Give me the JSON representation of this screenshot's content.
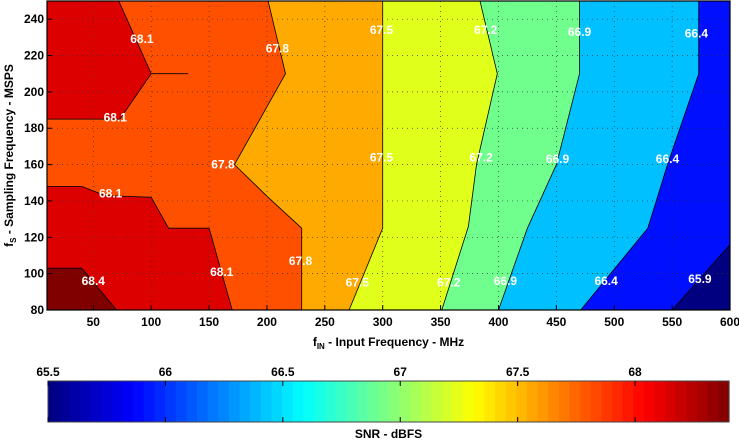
{
  "chart_data": {
    "type": "contour",
    "xlabel": {
      "main": "f",
      "sub": "IN",
      "rest": " - Input Frequency - MHz"
    },
    "ylabel": {
      "main": "f",
      "sub": "S",
      "rest": " - Sampling Frequency - MSPS"
    },
    "xlim": [
      10,
      600
    ],
    "ylim": [
      80,
      250
    ],
    "xticks": [
      50,
      100,
      150,
      200,
      250,
      300,
      350,
      400,
      450,
      500,
      550,
      600
    ],
    "yticks": [
      80,
      100,
      120,
      140,
      160,
      180,
      200,
      220,
      240
    ],
    "grid": true,
    "base_level": {
      "level": 67.8,
      "color": "#ff5000"
    },
    "bands_right_of_boundary": [
      {
        "level": 67.5,
        "color": "#ffaa00",
        "boundary": [
          [
            201,
            250
          ],
          [
            216,
            210
          ],
          [
            172,
            160
          ],
          [
            201,
            142
          ],
          [
            230,
            125
          ],
          [
            230,
            80
          ]
        ]
      },
      {
        "level": 67.2,
        "color": "#e0ff1a",
        "boundary": [
          [
            300,
            250
          ],
          [
            300,
            125
          ],
          [
            271,
            80
          ]
        ]
      },
      {
        "level": 66.9,
        "color": "#70ff8c",
        "boundary": [
          [
            384,
            250
          ],
          [
            399,
            210
          ],
          [
            381,
            160
          ],
          [
            374,
            126
          ],
          [
            351,
            80
          ]
        ]
      },
      {
        "level": 66.4,
        "color": "#00c0ff",
        "boundary": [
          [
            470,
            250
          ],
          [
            470,
            210
          ],
          [
            450,
            160
          ],
          [
            425,
            125
          ],
          [
            400,
            80
          ]
        ]
      },
      {
        "level": 65.9,
        "color": "#0010ff",
        "boundary": [
          [
            573,
            250
          ],
          [
            573,
            210
          ],
          [
            546,
            160
          ],
          [
            529,
            125
          ],
          [
            471,
            80
          ]
        ]
      },
      {
        "level": 65.6,
        "color": "#000080",
        "boundary": [
          [
            600,
            116
          ],
          [
            550,
            80
          ]
        ]
      }
    ],
    "islands": [
      {
        "level": 68.1,
        "color": "#dd0000",
        "polygon": [
          [
            10,
            250
          ],
          [
            72,
            250
          ],
          [
            100,
            210
          ],
          [
            73,
            185
          ],
          [
            10,
            185
          ]
        ]
      },
      {
        "level": 68.1,
        "color": "#dd0000",
        "polygon": [
          [
            10,
            148
          ],
          [
            40,
            148
          ],
          [
            60,
            143
          ],
          [
            100,
            142
          ],
          [
            115,
            125
          ],
          [
            150,
            125
          ],
          [
            170,
            80
          ],
          [
            10,
            80
          ]
        ]
      },
      {
        "level": 68.4,
        "color": "#800000",
        "polygon": [
          [
            10,
            103
          ],
          [
            40,
            103
          ],
          [
            70,
            80
          ],
          [
            10,
            80
          ]
        ]
      }
    ],
    "extra_lines": [
      [
        [
          100,
          210
        ],
        [
          132,
          210
        ]
      ]
    ],
    "contour_labels": [
      {
        "text": "68.1",
        "x": 92,
        "y": 229
      },
      {
        "text": "68.1",
        "x": 69,
        "y": 186
      },
      {
        "text": "68.1",
        "x": 65,
        "y": 144
      },
      {
        "text": "68.4",
        "x": 50,
        "y": 96
      },
      {
        "text": "68.1",
        "x": 161,
        "y": 101
      },
      {
        "text": "67.8",
        "x": 162,
        "y": 160
      },
      {
        "text": "67.8",
        "x": 209,
        "y": 224
      },
      {
        "text": "67.8",
        "x": 229,
        "y": 107
      },
      {
        "text": "67.5",
        "x": 299,
        "y": 234
      },
      {
        "text": "67.5",
        "x": 299,
        "y": 164
      },
      {
        "text": "67.5",
        "x": 278,
        "y": 95
      },
      {
        "text": "67.2",
        "x": 389,
        "y": 234
      },
      {
        "text": "67.2",
        "x": 385,
        "y": 164
      },
      {
        "text": "67.2",
        "x": 357,
        "y": 95
      },
      {
        "text": "66.9",
        "x": 470,
        "y": 233
      },
      {
        "text": "66.9",
        "x": 451,
        "y": 163
      },
      {
        "text": "66.9",
        "x": 406,
        "y": 96
      },
      {
        "text": "66.4",
        "x": 571,
        "y": 232
      },
      {
        "text": "66.4",
        "x": 546,
        "y": 163
      },
      {
        "text": "66.4",
        "x": 493,
        "y": 96
      },
      {
        "text": "65.9",
        "x": 574,
        "y": 97
      }
    ],
    "colorbar": {
      "label": "SNR - dBFS",
      "range": [
        65.5,
        68.4
      ],
      "ticks": [
        65.5,
        66,
        66.5,
        67,
        67.5,
        68
      ],
      "colormap": "jet",
      "steps": 64
    }
  }
}
